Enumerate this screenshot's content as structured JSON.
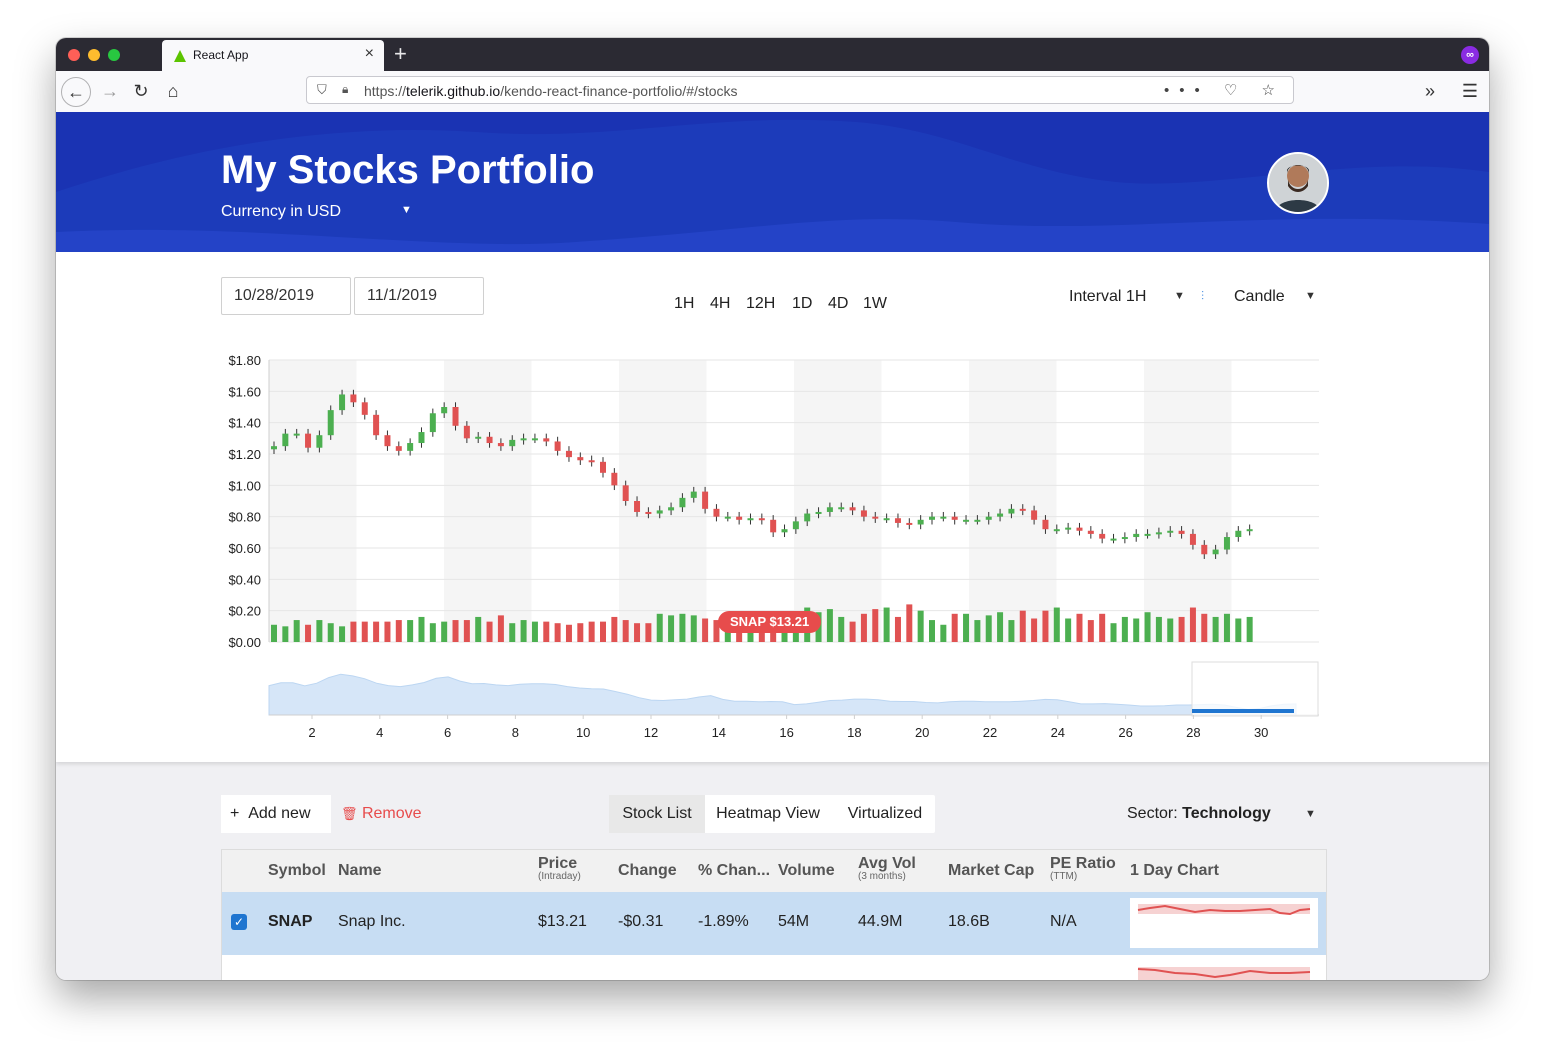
{
  "browser": {
    "tab_title": "React App",
    "tab_close": "×",
    "new_tab": "+",
    "url_prefix": "https://",
    "url_domain": "telerik.github.io",
    "url_path": "/kendo-react-finance-portfolio/#/stocks",
    "url_icons": "••• ♡ ☆",
    "overflow": "»",
    "menu": "☰",
    "ext_icon": "∞"
  },
  "header": {
    "title": "My Stocks Portfolio",
    "currency": "Currency in USD",
    "caret": "▼"
  },
  "controls": {
    "date_start": "10/28/2019",
    "date_end": "11/1/2019",
    "ranges": [
      "1H",
      "4H",
      "12H",
      "1D",
      "4D",
      "1W"
    ],
    "interval": "Interval 1H",
    "chart_type": "Candle",
    "caret": "▼"
  },
  "chart_data": {
    "type": "candlestick",
    "y_ticks": [
      "$1.80",
      "$1.60",
      "$1.40",
      "$1.20",
      "$1.00",
      "$0.80",
      "$0.60",
      "$0.40",
      "$0.20",
      "$0.00"
    ],
    "ylim": [
      0,
      1.8
    ],
    "x_ticks": [
      "2",
      "4",
      "6",
      "8",
      "10",
      "12",
      "14",
      "16",
      "18",
      "20",
      "22",
      "24",
      "26",
      "28",
      "30"
    ],
    "close_series": [
      1.25,
      1.33,
      1.33,
      1.24,
      1.32,
      1.48,
      1.58,
      1.53,
      1.45,
      1.32,
      1.25,
      1.22,
      1.27,
      1.34,
      1.46,
      1.5,
      1.38,
      1.3,
      1.31,
      1.27,
      1.25,
      1.29,
      1.3,
      1.3,
      1.28,
      1.22,
      1.18,
      1.16,
      1.15,
      1.08,
      1.0,
      0.9,
      0.83,
      0.82,
      0.84,
      0.86,
      0.92,
      0.96,
      0.85,
      0.8,
      0.8,
      0.78,
      0.79,
      0.78,
      0.7,
      0.72,
      0.77,
      0.82,
      0.83,
      0.86,
      0.86,
      0.84,
      0.8,
      0.79,
      0.79,
      0.76,
      0.75,
      0.78,
      0.8,
      0.8,
      0.78,
      0.78,
      0.78,
      0.8,
      0.82,
      0.85,
      0.84,
      0.78,
      0.72,
      0.72,
      0.73,
      0.71,
      0.69,
      0.66,
      0.66,
      0.67,
      0.69,
      0.69,
      0.7,
      0.71,
      0.69,
      0.62,
      0.56,
      0.59,
      0.67,
      0.71,
      0.72
    ],
    "volume": [
      0.11,
      0.1,
      0.14,
      0.11,
      0.14,
      0.12,
      0.1,
      0.13,
      0.13,
      0.13,
      0.13,
      0.14,
      0.14,
      0.16,
      0.12,
      0.13,
      0.14,
      0.14,
      0.16,
      0.13,
      0.17,
      0.12,
      0.14,
      0.13,
      0.13,
      0.12,
      0.11,
      0.12,
      0.13,
      0.13,
      0.16,
      0.14,
      0.12,
      0.12,
      0.18,
      0.17,
      0.18,
      0.17,
      0.15,
      0.14,
      0.14,
      0.14,
      0.16,
      0.15,
      0.14,
      0.14,
      0.19,
      0.22,
      0.19,
      0.21,
      0.16,
      0.13,
      0.18,
      0.21,
      0.22,
      0.16,
      0.24,
      0.2,
      0.14,
      0.11,
      0.18,
      0.18,
      0.14,
      0.17,
      0.19,
      0.14,
      0.2,
      0.15,
      0.2,
      0.22,
      0.15,
      0.18,
      0.14,
      0.18,
      0.12,
      0.16,
      0.15,
      0.19,
      0.16,
      0.15,
      0.16,
      0.22,
      0.18,
      0.16,
      0.18,
      0.15,
      0.16
    ],
    "navigator": "area"
  },
  "symbol_badge": "SNAP $13.21",
  "toolbar": {
    "add_icon": "+",
    "add_label": "Add new",
    "remove_icon": "🗑",
    "remove_label": "Remove",
    "tabs": [
      "Stock List",
      "Heatmap View",
      "Virtualized"
    ],
    "sector_label": "Sector:",
    "sector_value": "Technology",
    "caret": "▼"
  },
  "grid": {
    "columns": {
      "symbol": "Symbol",
      "name": "Name",
      "price": "Price",
      "price_sub": "(Intraday)",
      "change": "Change",
      "pct": "% Chan...",
      "volume": "Volume",
      "avgvol": "Avg Vol",
      "avgvol_sub": "(3 months)",
      "mcap": "Market Cap",
      "pe": "PE Ratio",
      "pe_sub": "(TTM)",
      "chart": "1 Day Chart"
    },
    "row": {
      "check": "✓",
      "symbol": "SNAP",
      "name": "Snap Inc.",
      "price": "$13.21",
      "change": "-$0.31",
      "pct": "-1.89%",
      "volume": "54M",
      "avgvol": "44.9M",
      "mcap": "18.6B",
      "pe": "N/A"
    }
  },
  "colors": {
    "up": "#4caf50",
    "down": "#e05252",
    "header": "#1a33b3"
  }
}
